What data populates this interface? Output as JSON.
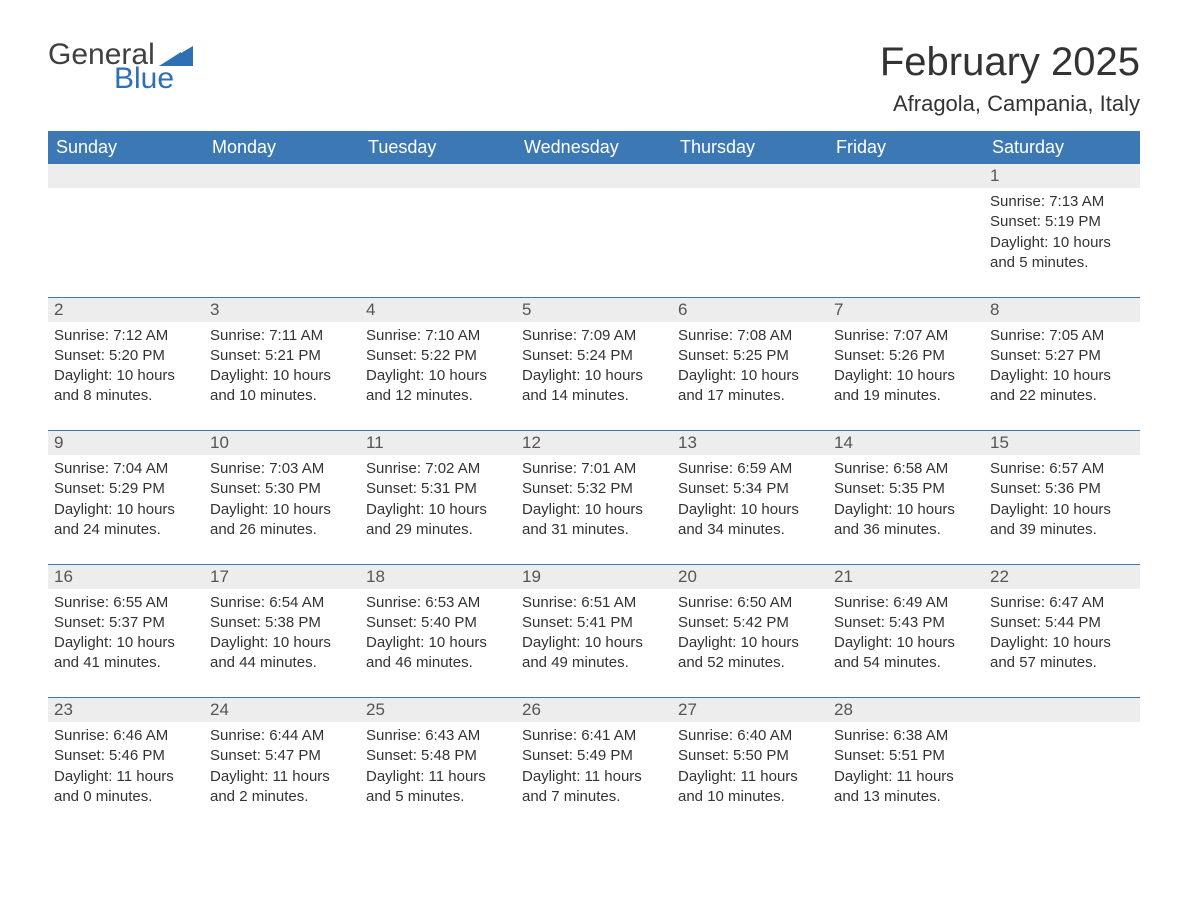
{
  "logo": {
    "word1": "General",
    "word2": "Blue",
    "brand_color": "#2f6fb3"
  },
  "title": "February 2025",
  "location": "Afragola, Campania, Italy",
  "colors": {
    "header_bg": "#3c78b4",
    "header_text": "#ffffff",
    "daynum_bg": "#ededed",
    "rule": "#3c78b4",
    "body_text": "#333333"
  },
  "day_headers": [
    "Sunday",
    "Monday",
    "Tuesday",
    "Wednesday",
    "Thursday",
    "Friday",
    "Saturday"
  ],
  "weeks": [
    [
      null,
      null,
      null,
      null,
      null,
      null,
      {
        "n": "1",
        "sr": "Sunrise: 7:13 AM",
        "ss": "Sunset: 5:19 PM",
        "dl1": "Daylight: 10 hours",
        "dl2": "and 5 minutes."
      }
    ],
    [
      {
        "n": "2",
        "sr": "Sunrise: 7:12 AM",
        "ss": "Sunset: 5:20 PM",
        "dl1": "Daylight: 10 hours",
        "dl2": "and 8 minutes."
      },
      {
        "n": "3",
        "sr": "Sunrise: 7:11 AM",
        "ss": "Sunset: 5:21 PM",
        "dl1": "Daylight: 10 hours",
        "dl2": "and 10 minutes."
      },
      {
        "n": "4",
        "sr": "Sunrise: 7:10 AM",
        "ss": "Sunset: 5:22 PM",
        "dl1": "Daylight: 10 hours",
        "dl2": "and 12 minutes."
      },
      {
        "n": "5",
        "sr": "Sunrise: 7:09 AM",
        "ss": "Sunset: 5:24 PM",
        "dl1": "Daylight: 10 hours",
        "dl2": "and 14 minutes."
      },
      {
        "n": "6",
        "sr": "Sunrise: 7:08 AM",
        "ss": "Sunset: 5:25 PM",
        "dl1": "Daylight: 10 hours",
        "dl2": "and 17 minutes."
      },
      {
        "n": "7",
        "sr": "Sunrise: 7:07 AM",
        "ss": "Sunset: 5:26 PM",
        "dl1": "Daylight: 10 hours",
        "dl2": "and 19 minutes."
      },
      {
        "n": "8",
        "sr": "Sunrise: 7:05 AM",
        "ss": "Sunset: 5:27 PM",
        "dl1": "Daylight: 10 hours",
        "dl2": "and 22 minutes."
      }
    ],
    [
      {
        "n": "9",
        "sr": "Sunrise: 7:04 AM",
        "ss": "Sunset: 5:29 PM",
        "dl1": "Daylight: 10 hours",
        "dl2": "and 24 minutes."
      },
      {
        "n": "10",
        "sr": "Sunrise: 7:03 AM",
        "ss": "Sunset: 5:30 PM",
        "dl1": "Daylight: 10 hours",
        "dl2": "and 26 minutes."
      },
      {
        "n": "11",
        "sr": "Sunrise: 7:02 AM",
        "ss": "Sunset: 5:31 PM",
        "dl1": "Daylight: 10 hours",
        "dl2": "and 29 minutes."
      },
      {
        "n": "12",
        "sr": "Sunrise: 7:01 AM",
        "ss": "Sunset: 5:32 PM",
        "dl1": "Daylight: 10 hours",
        "dl2": "and 31 minutes."
      },
      {
        "n": "13",
        "sr": "Sunrise: 6:59 AM",
        "ss": "Sunset: 5:34 PM",
        "dl1": "Daylight: 10 hours",
        "dl2": "and 34 minutes."
      },
      {
        "n": "14",
        "sr": "Sunrise: 6:58 AM",
        "ss": "Sunset: 5:35 PM",
        "dl1": "Daylight: 10 hours",
        "dl2": "and 36 minutes."
      },
      {
        "n": "15",
        "sr": "Sunrise: 6:57 AM",
        "ss": "Sunset: 5:36 PM",
        "dl1": "Daylight: 10 hours",
        "dl2": "and 39 minutes."
      }
    ],
    [
      {
        "n": "16",
        "sr": "Sunrise: 6:55 AM",
        "ss": "Sunset: 5:37 PM",
        "dl1": "Daylight: 10 hours",
        "dl2": "and 41 minutes."
      },
      {
        "n": "17",
        "sr": "Sunrise: 6:54 AM",
        "ss": "Sunset: 5:38 PM",
        "dl1": "Daylight: 10 hours",
        "dl2": "and 44 minutes."
      },
      {
        "n": "18",
        "sr": "Sunrise: 6:53 AM",
        "ss": "Sunset: 5:40 PM",
        "dl1": "Daylight: 10 hours",
        "dl2": "and 46 minutes."
      },
      {
        "n": "19",
        "sr": "Sunrise: 6:51 AM",
        "ss": "Sunset: 5:41 PM",
        "dl1": "Daylight: 10 hours",
        "dl2": "and 49 minutes."
      },
      {
        "n": "20",
        "sr": "Sunrise: 6:50 AM",
        "ss": "Sunset: 5:42 PM",
        "dl1": "Daylight: 10 hours",
        "dl2": "and 52 minutes."
      },
      {
        "n": "21",
        "sr": "Sunrise: 6:49 AM",
        "ss": "Sunset: 5:43 PM",
        "dl1": "Daylight: 10 hours",
        "dl2": "and 54 minutes."
      },
      {
        "n": "22",
        "sr": "Sunrise: 6:47 AM",
        "ss": "Sunset: 5:44 PM",
        "dl1": "Daylight: 10 hours",
        "dl2": "and 57 minutes."
      }
    ],
    [
      {
        "n": "23",
        "sr": "Sunrise: 6:46 AM",
        "ss": "Sunset: 5:46 PM",
        "dl1": "Daylight: 11 hours",
        "dl2": "and 0 minutes."
      },
      {
        "n": "24",
        "sr": "Sunrise: 6:44 AM",
        "ss": "Sunset: 5:47 PM",
        "dl1": "Daylight: 11 hours",
        "dl2": "and 2 minutes."
      },
      {
        "n": "25",
        "sr": "Sunrise: 6:43 AM",
        "ss": "Sunset: 5:48 PM",
        "dl1": "Daylight: 11 hours",
        "dl2": "and 5 minutes."
      },
      {
        "n": "26",
        "sr": "Sunrise: 6:41 AM",
        "ss": "Sunset: 5:49 PM",
        "dl1": "Daylight: 11 hours",
        "dl2": "and 7 minutes."
      },
      {
        "n": "27",
        "sr": "Sunrise: 6:40 AM",
        "ss": "Sunset: 5:50 PM",
        "dl1": "Daylight: 11 hours",
        "dl2": "and 10 minutes."
      },
      {
        "n": "28",
        "sr": "Sunrise: 6:38 AM",
        "ss": "Sunset: 5:51 PM",
        "dl1": "Daylight: 11 hours",
        "dl2": "and 13 minutes."
      },
      null
    ]
  ]
}
